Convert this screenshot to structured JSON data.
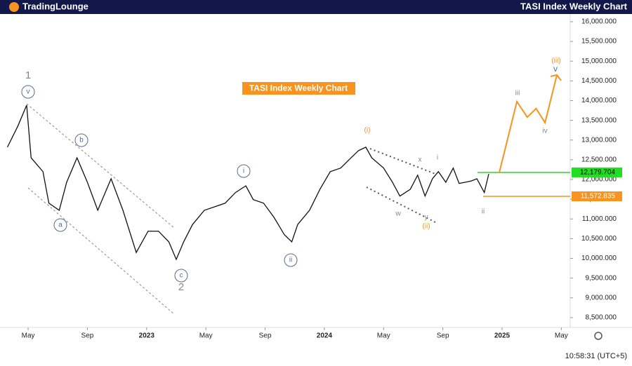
{
  "header": {
    "logo": "TradingLounge",
    "title": "TASI Index Weekly Chart"
  },
  "chart_data": {
    "type": "line",
    "title": "TASI Index Weekly Chart",
    "series": [
      {
        "color": "#111111",
        "x": [
          2.6,
          3.3,
          3.9,
          4.2,
          5.0,
          5.4,
          6.1,
          6.6,
          7.3,
          8.0,
          8.7,
          9.6,
          10.4,
          11.3,
          12.1,
          12.8,
          13.5,
          14.0,
          14.5,
          15.1,
          15.9,
          16.6,
          17.3,
          18.0,
          18.7,
          19.2,
          19.9,
          20.6,
          21.3,
          21.8,
          22.2,
          23.0,
          23.7,
          24.4,
          25.1,
          25.8,
          26.3,
          26.8,
          27.2,
          28.0,
          28.6,
          29.1,
          29.8,
          30.3,
          30.8,
          31.3,
          31.7,
          32.2,
          32.7,
          33.1,
          33.9,
          34.3,
          34.8,
          35.1
        ],
        "values": [
          12820,
          13350,
          13885,
          12550,
          12200,
          11400,
          11220,
          11930,
          12550,
          11930,
          11220,
          12020,
          11220,
          10150,
          10690,
          10690,
          10420,
          9975,
          10420,
          10860,
          11220,
          11310,
          11400,
          11670,
          11840,
          11490,
          11400,
          11040,
          10600,
          10420,
          10860,
          11220,
          11750,
          12200,
          12290,
          12550,
          12730,
          12820,
          12550,
          12290,
          11930,
          11580,
          11750,
          12110,
          11580,
          12020,
          12200,
          11930,
          12290,
          11900,
          11960,
          12020,
          11670,
          12140
        ]
      }
    ],
    "projection": {
      "color": "#f7931e",
      "x": [
        35.8,
        37.0,
        37.7,
        38.3,
        38.9,
        39.7
      ],
      "values": [
        12160,
        13975,
        13580,
        13800,
        13440,
        14650
      ]
    },
    "levels": [
      {
        "value": 12179.704,
        "label": "12,179.704",
        "color": "#22dd22"
      },
      {
        "value": 11572.835,
        "label": "11,572.835",
        "color": "#f7931e"
      }
    ],
    "xlim": [
      2.1,
      40.6
    ],
    "xticks": [
      {
        "value": 4,
        "label": "May"
      },
      {
        "value": 8,
        "label": "Sep"
      },
      {
        "value": 12,
        "label": "2023"
      },
      {
        "value": 16,
        "label": "May"
      },
      {
        "value": 20,
        "label": "Sep"
      },
      {
        "value": 24,
        "label": "2024"
      },
      {
        "value": 28,
        "label": "May"
      },
      {
        "value": 32,
        "label": "Sep"
      },
      {
        "value": 36,
        "label": "2025"
      },
      {
        "value": 40,
        "label": "May"
      }
    ],
    "ylim": [
      8250,
      16200
    ],
    "yticks": [
      {
        "value": 8500,
        "label": "8,500.000"
      },
      {
        "value": 9000,
        "label": "9,000.000"
      },
      {
        "value": 9500,
        "label": "9,500.000"
      },
      {
        "value": 10000,
        "label": "10,000.000"
      },
      {
        "value": 10500,
        "label": "10,500.000"
      },
      {
        "value": 11000,
        "label": "11,000.000"
      },
      {
        "value": 11500,
        "label": "11,500.000"
      },
      {
        "value": 12000,
        "label": "12,000.000"
      },
      {
        "value": 12500,
        "label": "12,500.000"
      },
      {
        "value": 13000,
        "label": "13,000.000"
      },
      {
        "value": 13500,
        "label": "13,500.000"
      },
      {
        "value": 14000,
        "label": "14,000.000"
      },
      {
        "value": 14500,
        "label": "14,500.000"
      },
      {
        "value": 15000,
        "label": "15,000.000"
      },
      {
        "value": 15500,
        "label": "15,500.000"
      },
      {
        "value": 16000,
        "label": "16,000.000"
      }
    ],
    "waves": [
      "1",
      "v",
      "b",
      "a",
      "c",
      "2",
      "i",
      "ii",
      "(i)",
      "x",
      "i",
      "w",
      "y",
      "(ii)",
      "ii",
      "iii",
      "iv",
      "(iii)",
      "v"
    ],
    "time": "10:58:31 (UTC+5)"
  }
}
